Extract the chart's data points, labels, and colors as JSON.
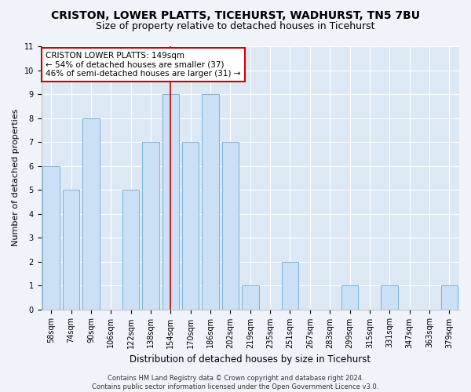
{
  "title": "CRISTON, LOWER PLATTS, TICEHURST, WADHURST, TN5 7BU",
  "subtitle": "Size of property relative to detached houses in Ticehurst",
  "xlabel": "Distribution of detached houses by size in Ticehurst",
  "ylabel": "Number of detached properties",
  "categories": [
    "58sqm",
    "74sqm",
    "90sqm",
    "106sqm",
    "122sqm",
    "138sqm",
    "154sqm",
    "170sqm",
    "186sqm",
    "202sqm",
    "219sqm",
    "235sqm",
    "251sqm",
    "267sqm",
    "283sqm",
    "299sqm",
    "315sqm",
    "331sqm",
    "347sqm",
    "363sqm",
    "379sqm"
  ],
  "values": [
    6,
    5,
    8,
    0,
    5,
    7,
    9,
    7,
    9,
    7,
    1,
    0,
    2,
    0,
    0,
    1,
    0,
    1,
    0,
    0,
    1
  ],
  "bar_color": "#cce0f5",
  "bar_edge_color": "#7ab3d9",
  "vertical_line_color": "#cc0000",
  "annotation_text": "CRISTON LOWER PLATTS: 149sqm\n← 54% of detached houses are smaller (37)\n46% of semi-detached houses are larger (31) →",
  "annotation_box_color": "#ffffff",
  "annotation_box_edge_color": "#cc0000",
  "ylim": [
    0,
    11
  ],
  "yticks": [
    0,
    1,
    2,
    3,
    4,
    5,
    6,
    7,
    8,
    9,
    10,
    11
  ],
  "footer": "Contains HM Land Registry data © Crown copyright and database right 2024.\nContains public sector information licensed under the Open Government Licence v3.0.",
  "fig_bg_color": "#f0f4fa",
  "plot_bg_color": "#dde8f5",
  "grid_color": "#ffffff",
  "title_fontsize": 10,
  "subtitle_fontsize": 9,
  "tick_fontsize": 7,
  "ylabel_fontsize": 8,
  "xlabel_fontsize": 8.5,
  "annotation_fontsize": 7.5,
  "footer_fontsize": 6
}
